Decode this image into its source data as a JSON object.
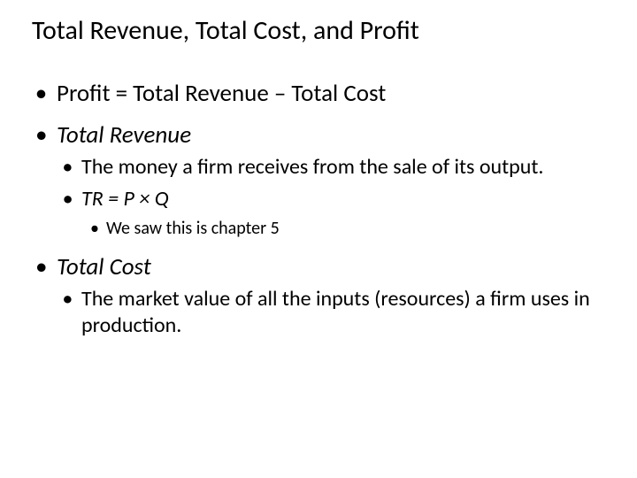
{
  "title": "Total Revenue, Total Cost, and Profit",
  "bullets": {
    "b1": "Profit = Total Revenue – Total Cost",
    "b2": "Total Revenue",
    "b2_1": "The money a firm receives from the sale of its output.",
    "b2_2": "TR = P × Q",
    "b2_2_1": "We saw this is chapter 5",
    "b3": "Total Cost",
    "b3_1": "The market value of all the inputs (resources) a firm uses in production."
  },
  "colors": {
    "background": "#ffffff",
    "text": "#000000"
  },
  "fonts": {
    "title_size_pt": 30,
    "lvl1_size_pt": 27,
    "lvl2_size_pt": 24,
    "lvl3_size_pt": 20,
    "family": "Calibri"
  }
}
